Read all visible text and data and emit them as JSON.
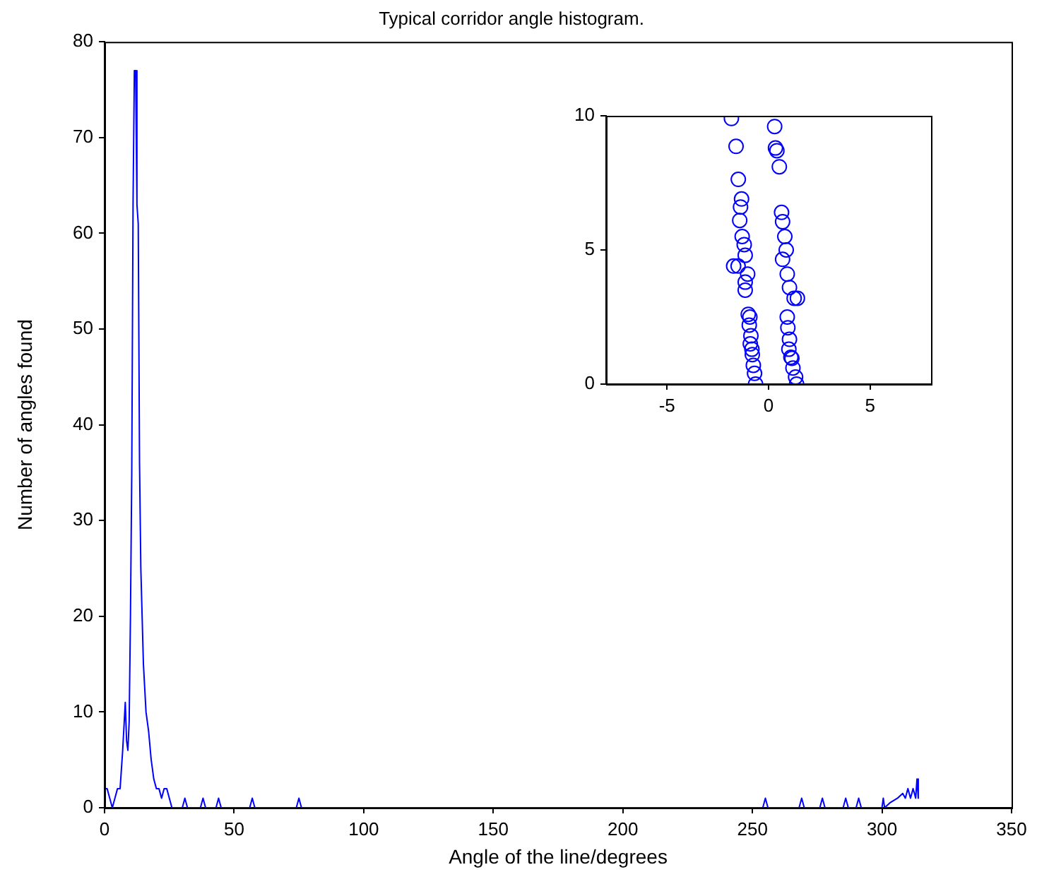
{
  "chart_data": [
    {
      "type": "line",
      "title": "Typical corridor angle histogram.",
      "xlabel": "Angle of the line/degrees",
      "ylabel": "Number of angles found",
      "marker": "none",
      "grid": false,
      "legend": false,
      "series": [
        {
          "color": "#0000ff",
          "x": [
            0,
            1,
            2,
            3,
            4,
            5,
            6,
            7,
            8,
            8.5,
            9,
            9.5,
            10,
            10.5,
            11,
            11.5,
            12,
            12.5,
            13,
            13.5,
            14,
            15,
            16,
            17,
            18,
            19,
            20,
            21,
            22,
            23,
            24,
            25,
            26,
            30,
            31,
            32,
            37,
            38,
            39,
            43,
            44,
            45,
            56,
            57,
            58,
            74,
            75,
            76,
            254,
            255,
            256,
            268,
            269,
            270,
            276,
            277,
            278,
            285,
            286,
            287,
            290,
            291,
            292,
            300,
            300.5,
            301,
            303,
            306,
            308,
            309,
            310,
            311,
            312,
            313,
            313.5,
            314
          ],
          "values": [
            2,
            2,
            1,
            0,
            1,
            2,
            2,
            6,
            11,
            7,
            6,
            9,
            20,
            35,
            63,
            77,
            77,
            63,
            61,
            36,
            25,
            15,
            10,
            8,
            5,
            3,
            2,
            2,
            1,
            2,
            2,
            1,
            0,
            0,
            1,
            0,
            0,
            1,
            0,
            0,
            1,
            0,
            0,
            1,
            0,
            0,
            1,
            0,
            0,
            1,
            0,
            0,
            1,
            0,
            0,
            1,
            0,
            0,
            1,
            0,
            0,
            1,
            0,
            0,
            1,
            0,
            0.5,
            1,
            1.5,
            1,
            2,
            1,
            2,
            1,
            3,
            1
          ]
        }
      ],
      "xlim": [
        0,
        350
      ],
      "xticks": [
        0,
        50,
        100,
        150,
        200,
        250,
        300,
        350
      ],
      "ylim": [
        0,
        80
      ],
      "yticks": [
        0,
        10,
        20,
        30,
        40,
        50,
        60,
        70,
        80
      ]
    },
    {
      "type": "scatter",
      "marker": "circle",
      "grid": false,
      "legend": false,
      "series": [
        {
          "color": "#0000ff",
          "x": [
            -1.83,
            -1.6,
            -1.49,
            -1.33,
            -1.38,
            -1.42,
            -1.3,
            -1.2,
            -1.15,
            -1.72,
            -1.5,
            -1.03,
            -1.15,
            -1.15,
            -1.0,
            -0.92,
            -0.95,
            -0.87,
            -0.9,
            -0.82,
            -0.8,
            -0.75,
            -0.69,
            -0.64,
            0.3,
            0.34,
            0.41,
            0.53,
            0.64,
            0.69,
            0.8,
            0.87,
            0.69,
            0.92,
            1.03,
            1.26,
            1.42,
            0.92,
            0.95,
            1.03,
            1.0,
            1.1,
            1.15,
            1.2,
            1.33,
            1.38
          ],
          "values": [
            9.9,
            8.86,
            7.63,
            6.9,
            6.6,
            6.1,
            5.5,
            5.2,
            4.8,
            4.4,
            4.4,
            4.1,
            3.8,
            3.5,
            2.6,
            2.5,
            2.2,
            1.8,
            1.5,
            1.3,
            1.1,
            0.7,
            0.4,
            0,
            9.6,
            8.8,
            8.7,
            8.1,
            6.4,
            6.05,
            5.5,
            5,
            4.65,
            4.1,
            3.6,
            3.2,
            3.2,
            2.5,
            2.1,
            1.67,
            1.3,
            1.0,
            0.96,
            0.6,
            0.26,
            0
          ]
        }
      ],
      "xlim": [
        -8,
        8
      ],
      "xticks": [
        -5,
        0,
        5
      ],
      "ylim": [
        0,
        10
      ],
      "yticks": [
        0,
        5,
        10
      ]
    }
  ]
}
